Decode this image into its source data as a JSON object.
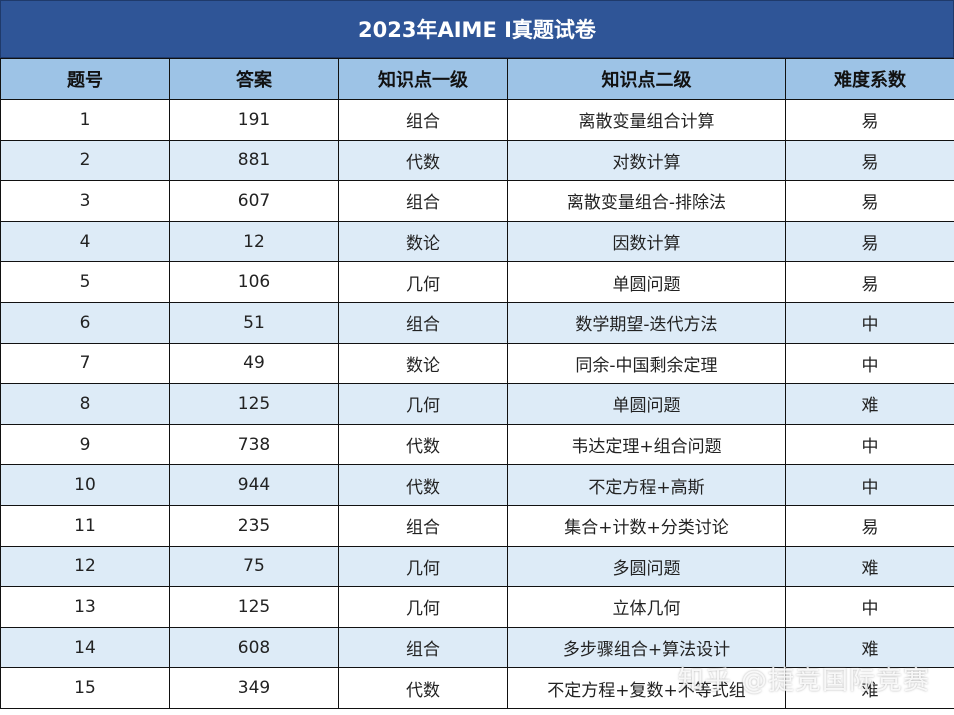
{
  "title": "2023年AIME I真题试卷",
  "columns": [
    "题号",
    "答案",
    "知识点一级",
    "知识点二级",
    "难度系数"
  ],
  "rows": [
    [
      "1",
      "191",
      "组合",
      "离散变量组合计算",
      "易"
    ],
    [
      "2",
      "881",
      "代数",
      "对数计算",
      "易"
    ],
    [
      "3",
      "607",
      "组合",
      "离散变量组合-排除法",
      "易"
    ],
    [
      "4",
      "12",
      "数论",
      "因数计算",
      "易"
    ],
    [
      "5",
      "106",
      "几何",
      "单圆问题",
      "易"
    ],
    [
      "6",
      "51",
      "组合",
      "数学期望-迭代方法",
      "中"
    ],
    [
      "7",
      "49",
      "数论",
      "同余-中国剩余定理",
      "中"
    ],
    [
      "8",
      "125",
      "几何",
      "单圆问题",
      "难"
    ],
    [
      "9",
      "738",
      "代数",
      "韦达定理+组合问题",
      "中"
    ],
    [
      "10",
      "944",
      "代数",
      "不定方程+高斯",
      "中"
    ],
    [
      "11",
      "235",
      "组合",
      "集合+计数+分类讨论",
      "易"
    ],
    [
      "12",
      "75",
      "几何",
      "多圆问题",
      "难"
    ],
    [
      "13",
      "125",
      "几何",
      "立体几何",
      "中"
    ],
    [
      "14",
      "608",
      "组合",
      "多步骤组合+算法设计",
      "难"
    ],
    [
      "15",
      "349",
      "代数",
      "不定方程+复数+不等式组",
      "难"
    ]
  ],
  "watermark": "知乎 @捷竞国际竞赛",
  "colors": {
    "title_bg": "#2f5597",
    "header_bg": "#9dc3e6",
    "stripe_bg": "#ddebf7"
  }
}
